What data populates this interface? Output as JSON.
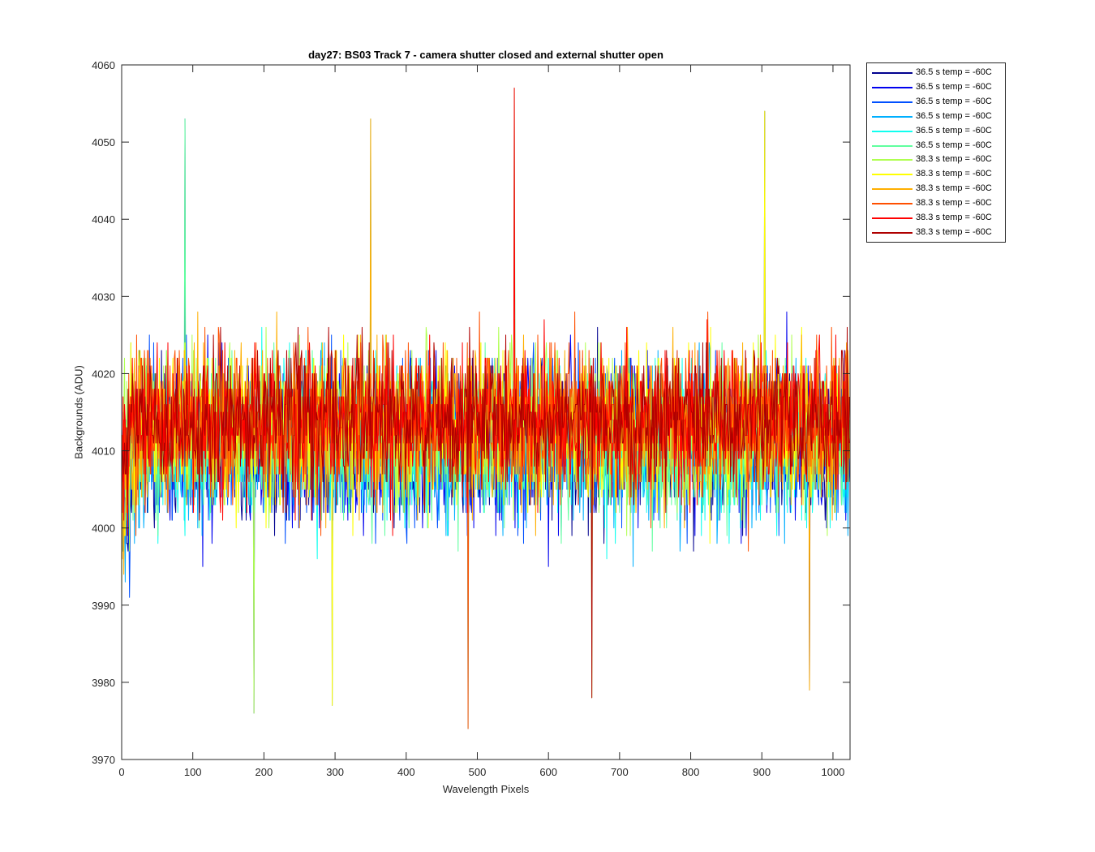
{
  "chart_data": {
    "type": "line",
    "title": "day27: BS03  Track 7 - camera shutter closed and external shutter open",
    "xlabel": "Wavelength Pixels",
    "ylabel": "Backgrounds (ADU)",
    "xlim": [
      0,
      1024
    ],
    "ylim": [
      3970,
      4060
    ],
    "xticks": [
      0,
      100,
      200,
      300,
      400,
      500,
      600,
      700,
      800,
      900,
      1000
    ],
    "yticks": [
      3970,
      3980,
      3990,
      4000,
      4010,
      4020,
      4030,
      4040,
      4050,
      4060
    ],
    "grid": false,
    "legend_position": "outside-top-right",
    "n_points": 1024,
    "series": [
      {
        "name": "36.5 s temp = -60C",
        "color": "#00008F",
        "mean": 4011,
        "spread": 9
      },
      {
        "name": "36.5 s temp = -60C",
        "color": "#0000EF",
        "mean": 4011,
        "spread": 9
      },
      {
        "name": "36.5 s temp = -60C",
        "color": "#0050FF",
        "mean": 4011,
        "spread": 9
      },
      {
        "name": "36.5 s temp = -60C",
        "color": "#00AFFF",
        "mean": 4011,
        "spread": 9
      },
      {
        "name": "36.5 s temp = -60C",
        "color": "#10FFEF",
        "mean": 4011,
        "spread": 9
      },
      {
        "name": "36.5 s temp = -60C",
        "color": "#60FF9F",
        "mean": 4011,
        "spread": 9
      },
      {
        "name": "38.3 s temp = -60C",
        "color": "#AFFF50",
        "mean": 4013,
        "spread": 9
      },
      {
        "name": "38.3 s temp = -60C",
        "color": "#FFFF00",
        "mean": 4013,
        "spread": 9
      },
      {
        "name": "38.3 s temp = -60C",
        "color": "#FFAF00",
        "mean": 4013,
        "spread": 9
      },
      {
        "name": "38.3 s temp = -60C",
        "color": "#FF5000",
        "mean": 4014,
        "spread": 9
      },
      {
        "name": "38.3 s temp = -60C",
        "color": "#FF0000",
        "mean": 4014,
        "spread": 8
      },
      {
        "name": "38.3 s temp = -60C",
        "color": "#AF0000",
        "mean": 4014,
        "spread": 8
      }
    ],
    "notable_points": [
      {
        "x": 89,
        "y": 4053
      },
      {
        "x": 186,
        "y": 3976
      },
      {
        "x": 296,
        "y": 3977
      },
      {
        "x": 350,
        "y": 4053
      },
      {
        "x": 487,
        "y": 3974
      },
      {
        "x": 552,
        "y": 4057
      },
      {
        "x": 661,
        "y": 3978
      },
      {
        "x": 904,
        "y": 4054
      },
      {
        "x": 967,
        "y": 3979
      }
    ]
  }
}
